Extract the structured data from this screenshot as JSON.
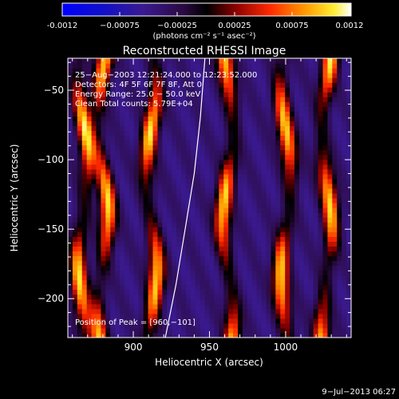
{
  "colorbar": {
    "ticks": [
      "-0.0012",
      "−0.00075",
      "−0.00025",
      "0.00025",
      "0.00075",
      "0.0012"
    ],
    "unit_label": "(photons cm⁻² s⁻¹ asec⁻²)"
  },
  "chart_data": {
    "type": "heatmap",
    "title": "Reconstructed RHESSI Image",
    "xlabel": "Heliocentric X (arcsec)",
    "ylabel": "Heliocentric Y (arcsec)",
    "xlim": [
      857,
      1043
    ],
    "ylim": [
      -228,
      -27
    ],
    "x_ticks": [
      900,
      950,
      1000
    ],
    "y_ticks": [
      -50,
      -100,
      -150,
      -200
    ],
    "x_tick_labels": [
      "900",
      "950",
      "1000"
    ],
    "y_tick_labels": [
      "−50",
      "−100",
      "−150",
      "−200"
    ],
    "color_range": [
      -0.0012,
      0.0012
    ],
    "colormap": "rainbow/flame",
    "bright_stripes_x": [
      867,
      880,
      912,
      962,
      1000,
      1027
    ],
    "peak": [
      960,
      -101
    ],
    "annotations": [
      "25−Aug−2003 12:21:24.000 to 12:23:52.000",
      "Detectors: 4F 5F 6F 7F 8F, Att 0",
      "Energy Range: 25.0 − 50.0 keV",
      "Clean    Total counts: 5.79E+04"
    ],
    "peak_label": "Position of Peak = [960,−101]",
    "limb_curve": [
      [
        921,
        -228
      ],
      [
        928,
        -190
      ],
      [
        934,
        -150
      ],
      [
        940,
        -110
      ],
      [
        944,
        -70
      ],
      [
        947,
        -27
      ]
    ]
  },
  "footer": {
    "date": "9−Jul−2013 06:27"
  }
}
